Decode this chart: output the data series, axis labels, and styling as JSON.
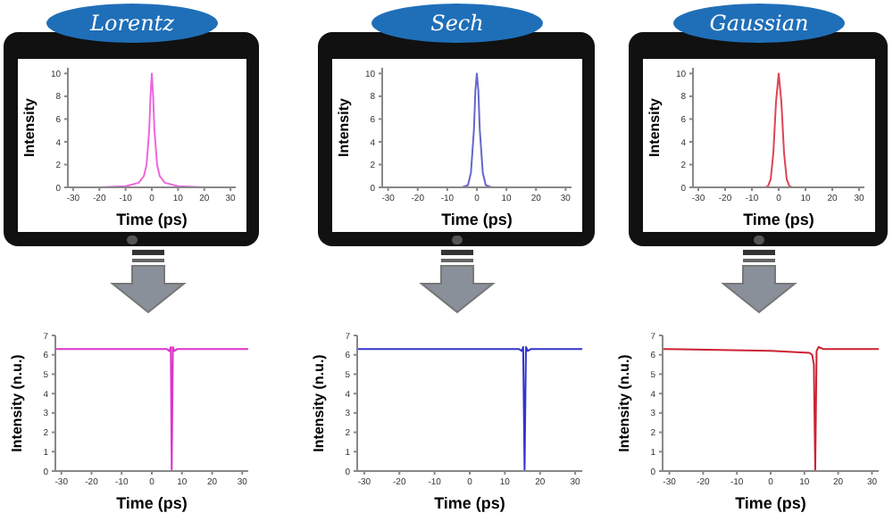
{
  "chart_data": [
    {
      "type": "line",
      "title": "Lorentz",
      "xlabel": "Time (ps)",
      "ylabel": "Intensity",
      "x": [
        -32,
        -20,
        -10,
        -5,
        -3,
        -2,
        -1,
        -0.5,
        0,
        0.5,
        1,
        2,
        3,
        5,
        10,
        20,
        32
      ],
      "series": [
        {
          "color": "#ee66dd",
          "values": [
            0,
            0,
            0.1,
            0.4,
            1,
            2,
            5,
            8,
            10,
            8,
            5,
            2,
            1,
            0.4,
            0.1,
            0,
            0
          ]
        }
      ],
      "xlim": [
        -32,
        32
      ],
      "ylim": [
        0,
        10.5
      ],
      "xticks": [
        -30,
        -20,
        -10,
        0,
        10,
        20,
        30
      ],
      "yticks": [
        0,
        2,
        4,
        6,
        8,
        10
      ]
    },
    {
      "type": "line",
      "title": "Sech",
      "xlabel": "Time (ps)",
      "ylabel": "Intensity",
      "x": [
        -32,
        -10,
        -5,
        -3,
        -2,
        -1,
        -0.5,
        0,
        0.5,
        1,
        2,
        3,
        5,
        10,
        32
      ],
      "series": [
        {
          "color": "#6666cc",
          "values": [
            0,
            0,
            0,
            0.2,
            1.3,
            5,
            8.5,
            10,
            8.5,
            5,
            1.3,
            0.2,
            0,
            0,
            0
          ]
        }
      ],
      "xlim": [
        -32,
        32
      ],
      "ylim": [
        0,
        10.5
      ],
      "xticks": [
        -30,
        -20,
        -10,
        0,
        10,
        20,
        30
      ],
      "yticks": [
        0,
        2,
        4,
        6,
        8,
        10
      ]
    },
    {
      "type": "line",
      "title": "Gaussian",
      "xlabel": "Time (ps)",
      "ylabel": "Intensity",
      "x": [
        -32,
        -10,
        -5,
        -4,
        -3,
        -2,
        -1,
        0,
        1,
        2,
        3,
        4,
        5,
        10,
        32
      ],
      "series": [
        {
          "color": "#dd4455",
          "values": [
            0,
            0,
            0,
            0.1,
            0.7,
            3,
            7.5,
            10,
            7.5,
            3,
            0.7,
            0.1,
            0,
            0,
            0
          ]
        }
      ],
      "xlim": [
        -32,
        32
      ],
      "ylim": [
        0,
        10.5
      ],
      "xticks": [
        -30,
        -20,
        -10,
        0,
        10,
        20,
        30
      ],
      "yticks": [
        0,
        2,
        4,
        6,
        8,
        10
      ]
    },
    {
      "type": "line",
      "xlabel": "Time (ps)",
      "ylabel": "Intensity (n.u.)",
      "x": [
        -32,
        0,
        5,
        5.8,
        6.3,
        6.6,
        7,
        7.5,
        8.5,
        32
      ],
      "series": [
        {
          "color": "#dd33cc",
          "values": [
            6.3,
            6.3,
            6.3,
            6.2,
            6.4,
            0,
            6.4,
            6.2,
            6.3,
            6.3
          ]
        }
      ],
      "xlim": [
        -32,
        32
      ],
      "ylim": [
        0,
        7
      ],
      "xticks": [
        -30,
        -20,
        -10,
        0,
        10,
        20,
        30
      ],
      "yticks": [
        0,
        1,
        2,
        3,
        4,
        5,
        6,
        7
      ]
    },
    {
      "type": "line",
      "xlabel": "Time (ps)",
      "ylabel": "Intensity (n.u.)",
      "x": [
        -32,
        0,
        14,
        14.8,
        15.2,
        15.6,
        16,
        16.5,
        17.5,
        32
      ],
      "series": [
        {
          "color": "#3333cc",
          "values": [
            6.3,
            6.3,
            6.3,
            6.2,
            6.4,
            0,
            6.4,
            6.2,
            6.3,
            6.3
          ]
        }
      ],
      "xlim": [
        -32,
        32
      ],
      "ylim": [
        0,
        7
      ],
      "xticks": [
        -30,
        -20,
        -10,
        0,
        10,
        20,
        30
      ],
      "yticks": [
        0,
        1,
        2,
        3,
        4,
        5,
        6,
        7
      ]
    },
    {
      "type": "line",
      "xlabel": "Time (ps)",
      "ylabel": "Intensity (n.u.)",
      "x": [
        -32,
        0,
        11.5,
        12.3,
        12.8,
        13.2,
        13.6,
        14.2,
        15.5,
        32
      ],
      "series": [
        {
          "color": "#cc2233",
          "values": [
            6.3,
            6.2,
            6.1,
            6,
            5.5,
            0,
            6.2,
            6.4,
            6.3,
            6.3
          ]
        }
      ],
      "xlim": [
        -32,
        32
      ],
      "ylim": [
        0,
        7
      ],
      "xticks": [
        -30,
        -20,
        -10,
        0,
        10,
        20,
        30
      ],
      "yticks": [
        0,
        1,
        2,
        3,
        4,
        5,
        6,
        7
      ]
    }
  ]
}
